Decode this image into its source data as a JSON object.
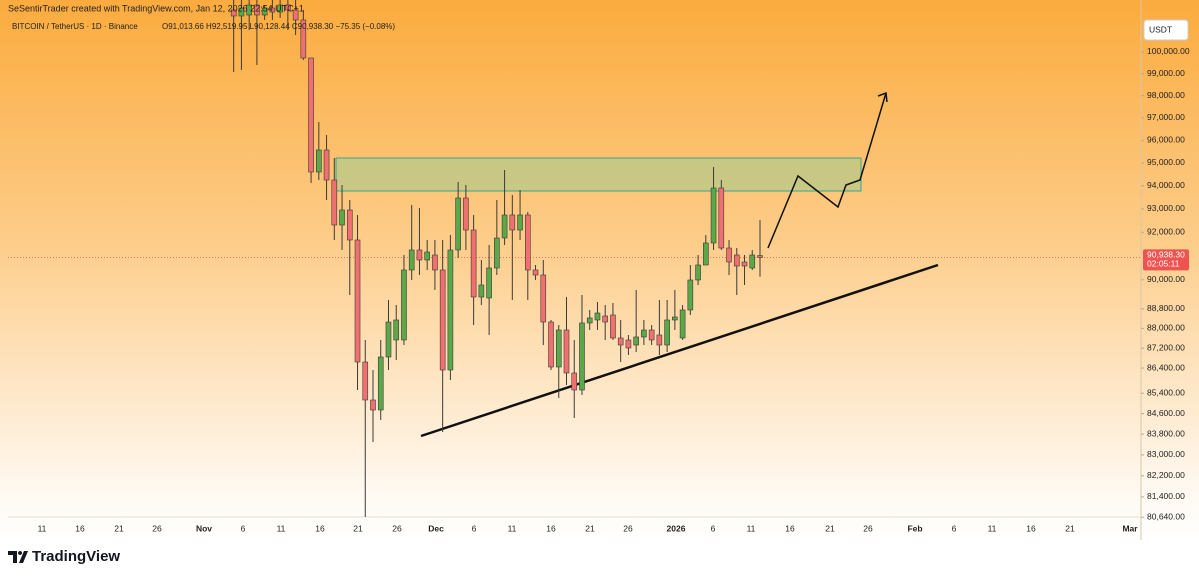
{
  "credit": "SeSentirTrader created with TradingView.com, Jan 12, 2026 22:54 UTC+1",
  "logo": "TradingView",
  "chart_data": {
    "type": "candlestick",
    "symbol": "BITCOIN / TetherUS · 1D · Binance",
    "ohlc_text": "O91,013.66 H92,519.95 L90,128.44 C90,938.30 −75.35 (−0.08%)",
    "currency": "USDT",
    "last_price": {
      "value": 90938.3,
      "label": "90,938.30"
    },
    "countdown": "02:05:11",
    "up_color": "#5aa84a",
    "down_color": "#f07070",
    "wick_color": "#3a3a3a",
    "log_scale": true,
    "ylim": [
      80648,
      102434
    ],
    "yticks": [
      {
        "value": 100000,
        "label": "100,000.00"
      },
      {
        "value": 99000,
        "label": "99,000.00"
      },
      {
        "value": 98000,
        "label": "98,000.00"
      },
      {
        "value": 97000,
        "label": "97,000.00"
      },
      {
        "value": 96000,
        "label": "96,000.00"
      },
      {
        "value": 95000,
        "label": "95,000.00"
      },
      {
        "value": 94000,
        "label": "94,000.00"
      },
      {
        "value": 93000,
        "label": "93,000.00"
      },
      {
        "value": 92000,
        "label": "92,000.00"
      },
      {
        "value": 90000,
        "label": "90,000.00"
      },
      {
        "value": 88800,
        "label": "88,800.00"
      },
      {
        "value": 88000,
        "label": "88,000.00"
      },
      {
        "value": 87200,
        "label": "87,200.00"
      },
      {
        "value": 86400,
        "label": "86,400.00"
      },
      {
        "value": 85400,
        "label": "85,400.00"
      },
      {
        "value": 84600,
        "label": "84,600.00"
      },
      {
        "value": 83800,
        "label": "83,800.00"
      },
      {
        "value": 83000,
        "label": "83,000.00"
      },
      {
        "value": 82200,
        "label": "82,200.00"
      },
      {
        "value": 81400,
        "label": "81,400.00"
      },
      {
        "value": 80640,
        "label": "80,640.00"
      }
    ],
    "xticks": [
      "11",
      "16",
      "21",
      "26",
      "Nov",
      "6",
      "11",
      "16",
      "21",
      "26",
      "Dec",
      "6",
      "11",
      "16",
      "21",
      "26",
      "2026",
      "6",
      "11",
      "16",
      "21",
      "26",
      "Feb",
      "6",
      "11",
      "16",
      "21",
      "Mar"
    ],
    "open": [
      101962,
      101679,
      101726,
      102198,
      101726,
      102056,
      101867,
      102198,
      101962,
      101491,
      99723,
      94601,
      95568,
      94251,
      92310,
      92953,
      91672,
      86642,
      85133,
      84740,
      86843,
      87529,
      87529,
      90409,
      91249,
      90828,
      91038,
      90409,
      86322,
      91249,
      93470,
      92097,
      89287,
      89246,
      90492,
      91757,
      92738,
      92097,
      92738,
      90409,
      90200,
      88260,
      86442,
      87934,
      86203,
      85528,
      88220,
      88342,
      88506,
      88547,
      87610,
      87529,
      87326,
      87650,
      87934,
      87731,
      87326,
      88342,
      87610,
      88752,
      89992,
      90618,
      91545,
      93903,
      91333,
      91038,
      90744,
      90492,
      91013.66
    ],
    "high": [
      102434,
      102434,
      102434,
      102434,
      102198,
      102434,
      102434,
      102434,
      102434,
      101962,
      99723,
      96814,
      96234,
      95215,
      94034,
      93384,
      92738,
      87529,
      86322,
      87529,
      89163,
      88957,
      91038,
      93168,
      93039,
      91672,
      91672,
      91672,
      91884,
      94164,
      94034,
      92738,
      90828,
      91460,
      93384,
      94688,
      93600,
      93817,
      92867,
      90618,
      90828,
      88342,
      88138,
      89287,
      87529,
      89369,
      88752,
      89081,
      88957,
      89039,
      88342,
      87731,
      89576,
      88342,
      88138,
      89163,
      89163,
      89576,
      88957,
      90618,
      91038,
      91884,
      94820,
      94251,
      91672,
      91333,
      91038,
      91249,
      92519.95
    ],
    "low": [
      99079,
      99171,
      101023,
      99400,
      101491,
      101491,
      101585,
      101023,
      100789,
      99631,
      94121,
      94251,
      93384,
      91672,
      91249,
      89369,
      85528,
      80648,
      83495,
      84349,
      86322,
      86723,
      87326,
      89992,
      90200,
      90409,
      89576,
      83882,
      85924,
      90912,
      91249,
      88138,
      88957,
      87731,
      90200,
      91460,
      89163,
      91672,
      89163,
      89992,
      87326,
      86322,
      85212,
      85726,
      84427,
      85330,
      87934,
      87934,
      87529,
      87529,
      86642,
      86923,
      87044,
      87326,
      87326,
      86923,
      87044,
      87934,
      87529,
      88547,
      89784,
      90618,
      91249,
      91249,
      90200,
      89369,
      89784,
      90409,
      90128.44
    ],
    "close": [
      101679,
      102056,
      102198,
      101726,
      102056,
      101867,
      102198,
      101962,
      101491,
      99723,
      94601,
      95568,
      94251,
      92310,
      92953,
      91672,
      86642,
      85133,
      84740,
      86843,
      88260,
      88342,
      90409,
      91249,
      90828,
      91165,
      90409,
      86322,
      91249,
      93470,
      92097,
      89287,
      89784,
      90492,
      91757,
      92738,
      92097,
      92738,
      90409,
      90200,
      88260,
      86442,
      87934,
      86203,
      85528,
      88220,
      88424,
      88628,
      88260,
      87610,
      87326,
      87205,
      87650,
      87934,
      87529,
      87326,
      88342,
      88465,
      88752,
      89992,
      90618,
      91545,
      93903,
      91333,
      90744,
      90576,
      90576,
      91038,
      90938.3
    ]
  }
}
